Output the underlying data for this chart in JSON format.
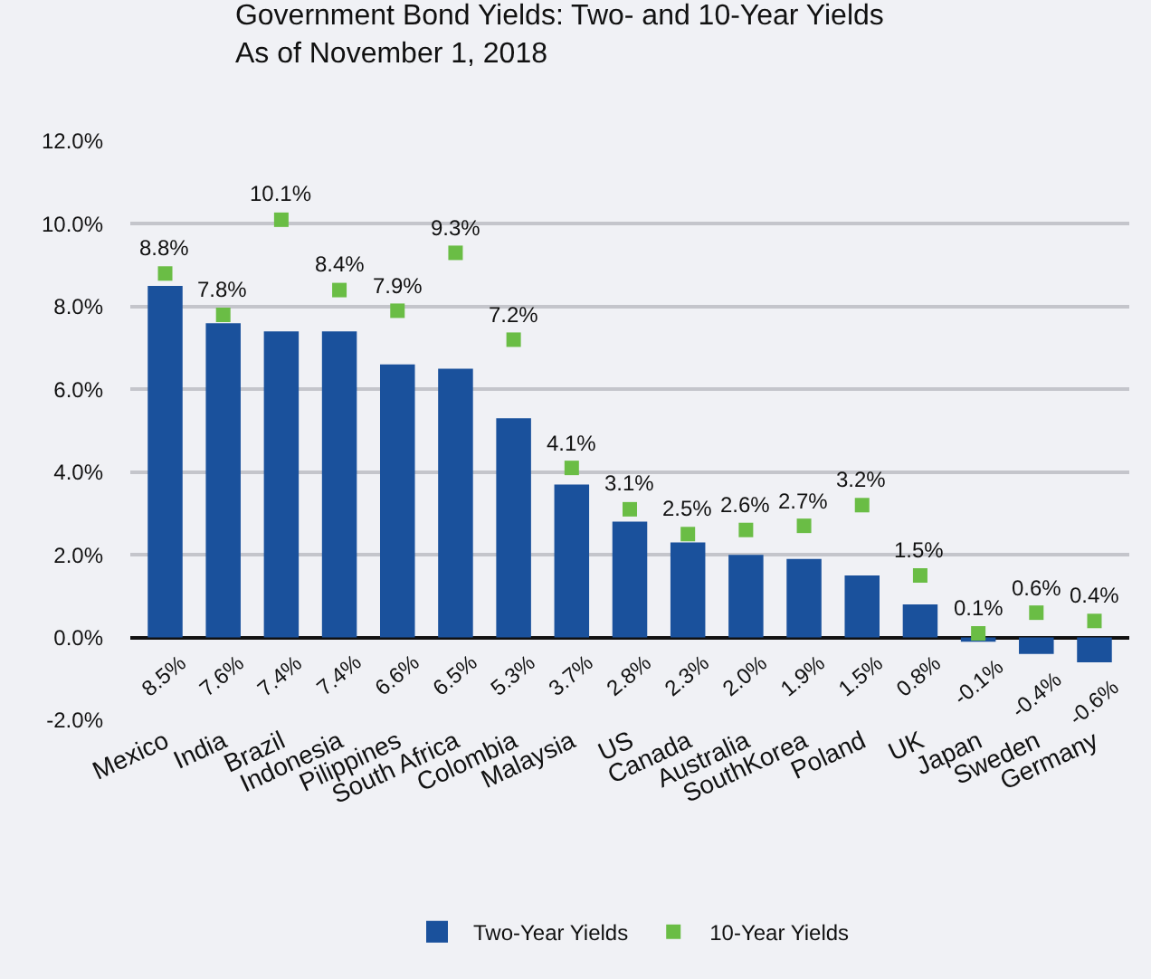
{
  "chart_data": {
    "type": "bar",
    "title": "Government Bond Yields: Two- and 10-Year Yields\nAs of November 1, 2018",
    "categories": [
      "Mexico",
      "India",
      "Brazil",
      "Indonesia",
      "Pilippines",
      "South Africa",
      "Colombia",
      "Malaysia",
      "US",
      "Canada",
      "Australia",
      "SouthKorea",
      "Poland",
      "UK",
      "Japan",
      "Sweden",
      "Germany"
    ],
    "series": [
      {
        "name": "Two-Year Yields",
        "type": "bar",
        "color": "#1a519c",
        "values": [
          8.5,
          7.6,
          7.4,
          7.4,
          6.6,
          6.5,
          5.3,
          3.7,
          2.8,
          2.3,
          2.0,
          1.9,
          1.5,
          0.8,
          -0.1,
          -0.4,
          -0.6
        ],
        "value_labels": [
          "8.5%",
          "7.6%",
          "7.4%",
          "7.4%",
          "6.6%",
          "6.5%",
          "5.3%",
          "3.7%",
          "2.8%",
          "2.3%",
          "2.0%",
          "1.9%",
          "1.5%",
          "0.8%",
          "-0.1%",
          "-0.4%",
          "-0.6%"
        ]
      },
      {
        "name": "10-Year Yields",
        "type": "scatter",
        "color": "#6abd45",
        "values": [
          8.8,
          7.8,
          10.1,
          8.4,
          7.9,
          9.3,
          7.2,
          4.1,
          3.1,
          2.5,
          2.6,
          2.7,
          3.2,
          1.5,
          0.1,
          0.6,
          0.4
        ],
        "value_labels": [
          "8.8%",
          "7.8%",
          "10.1%",
          "8.4%",
          "7.9%",
          "9.3%",
          "7.2%",
          "4.1%",
          "3.1%",
          "2.5%",
          "2.6%",
          "2.7%",
          "3.2%",
          "1.5%",
          "0.1%",
          "0.6%",
          "0.4%"
        ]
      }
    ],
    "ylim": [
      -2,
      12
    ],
    "yticks": [
      {
        "value": -2,
        "label": "-2.0%"
      },
      {
        "value": 0,
        "label": "0.0%"
      },
      {
        "value": 2,
        "label": "2.0%"
      },
      {
        "value": 4,
        "label": "4.0%"
      },
      {
        "value": 6,
        "label": "6.0%"
      },
      {
        "value": 8,
        "label": "8.0%"
      },
      {
        "value": 10,
        "label": "10.0%"
      },
      {
        "value": 12,
        "label": "12.0%"
      }
    ],
    "grid": "y",
    "legend": "bottom"
  }
}
